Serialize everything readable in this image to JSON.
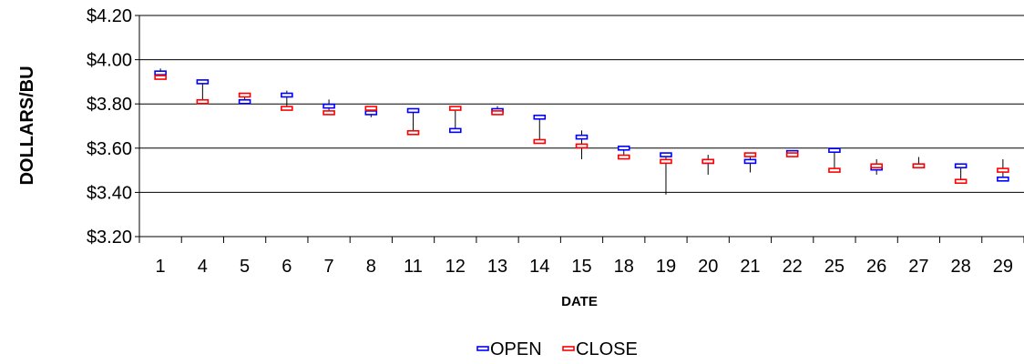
{
  "chart_data": {
    "type": "stock",
    "title": "",
    "xlabel": "DATE",
    "ylabel": "DOLLARS/BU",
    "ylim": [
      3.2,
      4.2
    ],
    "yticks": [
      "$3.20",
      "$3.40",
      "$3.60",
      "$3.80",
      "$4.00",
      "$4.20"
    ],
    "ytick_values": [
      3.2,
      3.4,
      3.6,
      3.8,
      4.0,
      4.2
    ],
    "grid": true,
    "legend_position": "bottom",
    "categories": [
      "1",
      "4",
      "5",
      "6",
      "7",
      "8",
      "11",
      "12",
      "13",
      "14",
      "15",
      "18",
      "19",
      "20",
      "21",
      "22",
      "25",
      "26",
      "27",
      "28",
      "29"
    ],
    "high": [
      3.96,
      3.9,
      3.85,
      3.86,
      3.82,
      3.79,
      3.78,
      3.78,
      3.79,
      3.74,
      3.68,
      3.61,
      3.57,
      3.57,
      3.58,
      3.59,
      3.59,
      3.55,
      3.56,
      3.52,
      3.55
    ],
    "low": [
      3.91,
      3.8,
      3.8,
      3.78,
      3.75,
      3.74,
      3.67,
      3.68,
      3.75,
      3.63,
      3.55,
      3.55,
      3.39,
      3.48,
      3.49,
      3.56,
      3.5,
      3.48,
      3.51,
      3.45,
      3.45
    ],
    "series": [
      {
        "name": "OPEN",
        "color": "#0000ff",
        "values": [
          3.94,
          3.9,
          3.81,
          3.84,
          3.79,
          3.76,
          3.77,
          3.68,
          3.77,
          3.74,
          3.65,
          3.6,
          3.57,
          3.54,
          3.54,
          3.58,
          3.59,
          3.51,
          3.52,
          3.52,
          3.46
        ]
      },
      {
        "name": "CLOSE",
        "color": "#ff0000",
        "values": [
          3.92,
          3.81,
          3.84,
          3.78,
          3.76,
          3.78,
          3.67,
          3.78,
          3.76,
          3.63,
          3.61,
          3.56,
          3.54,
          3.54,
          3.57,
          3.57,
          3.5,
          3.52,
          3.52,
          3.45,
          3.5
        ]
      }
    ]
  }
}
